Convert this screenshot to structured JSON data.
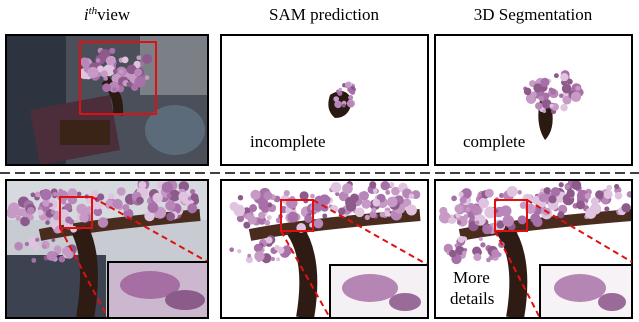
{
  "header": {
    "columns": [
      {
        "base": "i",
        "sup": "th",
        "rest": "view"
      },
      "SAM prediction",
      "3D Segmentation"
    ]
  },
  "top_row": {
    "labels": [
      "incomplete",
      "complete"
    ]
  },
  "bottom_row": {
    "labels": [
      "More",
      "details"
    ]
  }
}
